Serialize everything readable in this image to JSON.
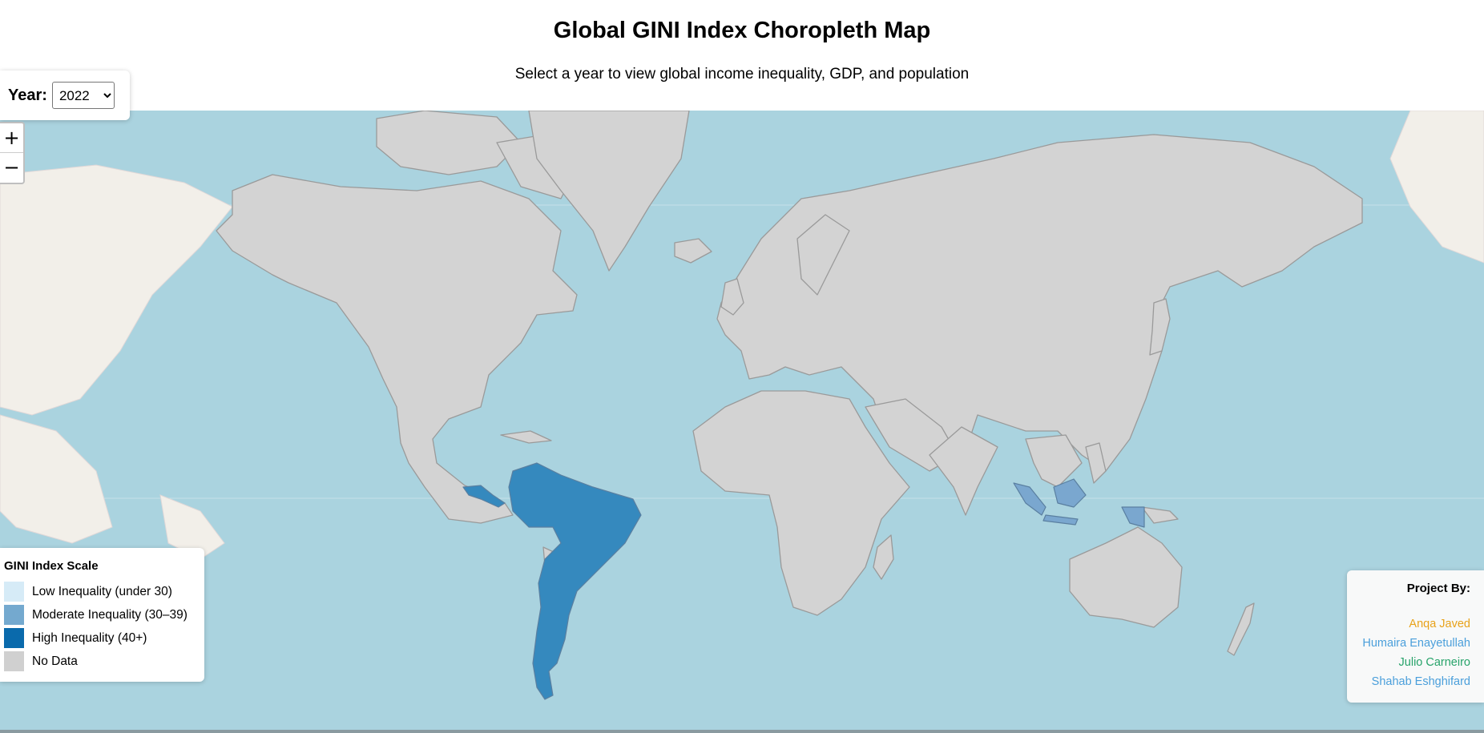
{
  "header": {
    "title": "Global GINI Index Choropleth Map",
    "subtitle": "Select a year to view global income inequality, GDP, and population"
  },
  "year_control": {
    "label": "Year:",
    "selected": "2022"
  },
  "zoom": {
    "in_label": "+",
    "out_label": "−"
  },
  "legend": {
    "title": "GINI Index Scale",
    "items": [
      {
        "label": "Low Inequality (under 30)",
        "color": "#d6ebf7"
      },
      {
        "label": "Moderate Inequality (30–39)",
        "color": "#74a9cf"
      },
      {
        "label": "High Inequality (40+)",
        "color": "#0a6aac"
      },
      {
        "label": "No Data",
        "color": "#d0d0d0"
      }
    ]
  },
  "credits": {
    "title": "Project By:",
    "names": [
      {
        "name": "Anqa Javed",
        "color": "#e8a21a"
      },
      {
        "name": "Humaira Enayetullah",
        "color": "#4a9fdb"
      },
      {
        "name": "Julio Carneiro",
        "color": "#27a36a"
      },
      {
        "name": "Shahab Eshghifard",
        "color": "#4a9fdb"
      }
    ]
  },
  "map": {
    "colors": {
      "ocean": "#aad3df",
      "land_no_data": "#d3d3d3",
      "land_border": "#9a9a9a",
      "basemap_land": "#f2efe9",
      "high_inequality": "#3589be",
      "moderate_inequality": "#7aa7cf"
    },
    "high_inequality_region": "South America",
    "moderate_inequality_region": "Indonesia"
  }
}
